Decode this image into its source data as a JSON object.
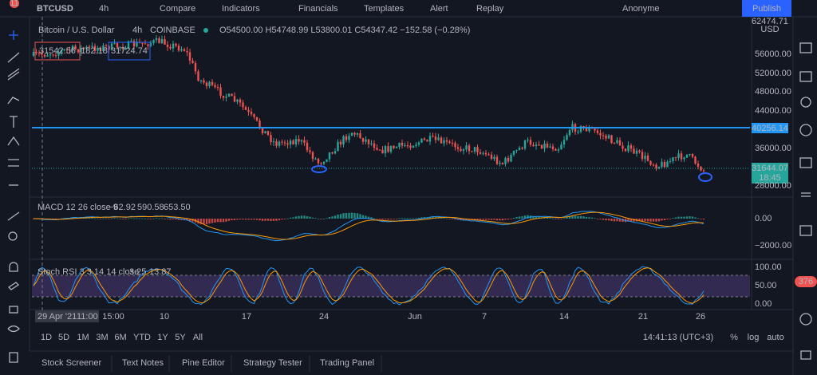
{
  "toolbar": {
    "symbol": "BTCUSD",
    "interval": "4h",
    "items": [
      "Compare",
      "Indicators",
      "Financials",
      "Templates",
      "Alert",
      "Replay"
    ],
    "layout_name": "Anonyme",
    "publish": "Publish",
    "notification_count": "11"
  },
  "legend": {
    "title": "Bitcoin / U.S. Dollar",
    "interval": "4h",
    "exchange": "COINBASE",
    "ohlc": "O54500.00 H54748.99 L53800.01 C54347.42 −152.58 (−0.28%)"
  },
  "order_panel": {
    "sell": "31542.56",
    "spread": "182.18",
    "buy": "31724.74"
  },
  "price_axis": {
    "top": "62474.71",
    "currency": "USD",
    "ticks": [
      "56000.00",
      "52000.00",
      "48000.00",
      "44000.00",
      "36000.00",
      "28000.00"
    ],
    "line_label": "40256.14",
    "last_price": "31644.07",
    "countdown": "18:45"
  },
  "macd": {
    "label": "MACD 12 26 close 9",
    "values": [
      "−62.92",
      "590.58",
      "653.50"
    ],
    "ticks": [
      "0.00",
      "−2000.00"
    ]
  },
  "stoch": {
    "label": "Stoch RSI 3 3 14 14 close",
    "values": [
      "3.25",
      "13.87"
    ],
    "ticks": [
      "100.00",
      "50.00",
      "0.00"
    ]
  },
  "time_axis": {
    "crosshair": "29 Apr '21",
    "crosshair_time": "11:00",
    "ticks": [
      "15:00",
      "10",
      "17",
      "24",
      "Jun",
      "7",
      "14",
      "21",
      "26"
    ]
  },
  "bottom_bar": {
    "ranges": [
      "1D",
      "5D",
      "1M",
      "3M",
      "6M",
      "YTD",
      "1Y",
      "5Y",
      "All"
    ],
    "clock": "14:41:13 (UTC+3)",
    "scale": [
      "%",
      "log",
      "auto"
    ]
  },
  "tabs": [
    "Stock Screener",
    "Text Notes",
    "Pine Editor",
    "Strategy Tester",
    "Trading Panel"
  ],
  "side_badge": "376"
}
